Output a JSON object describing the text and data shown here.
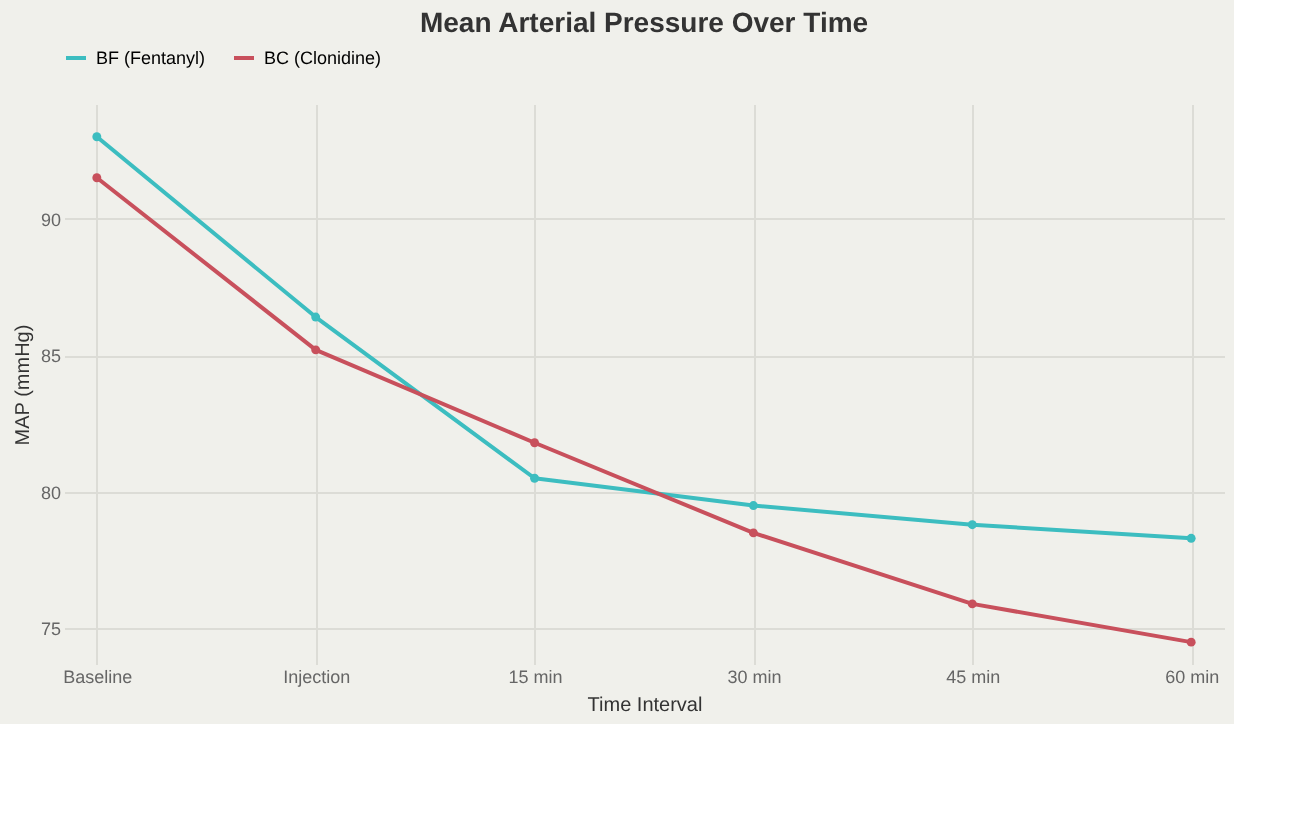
{
  "chart_data": {
    "type": "line",
    "title": "Mean Arterial Pressure Over Time",
    "xlabel": "Time Interval",
    "ylabel": "MAP (mmHg)",
    "categories": [
      "Baseline",
      "Injection",
      "15 min",
      "30 min",
      "45 min",
      "60 min"
    ],
    "series": [
      {
        "name": "BF (Fentanyl)",
        "color": "#3cbdc0",
        "values": [
          93.0,
          86.4,
          80.5,
          79.5,
          78.8,
          78.3
        ]
      },
      {
        "name": "BC (Clonidine)",
        "color": "#c8505c",
        "values": [
          91.5,
          85.2,
          81.8,
          78.5,
          75.9,
          74.5
        ]
      }
    ],
    "ylim": [
      73.7,
      94.2
    ],
    "yticks": [
      75,
      80,
      85,
      90
    ],
    "grid": true,
    "legend": "top",
    "marker": "circle",
    "line_style": "solid"
  }
}
